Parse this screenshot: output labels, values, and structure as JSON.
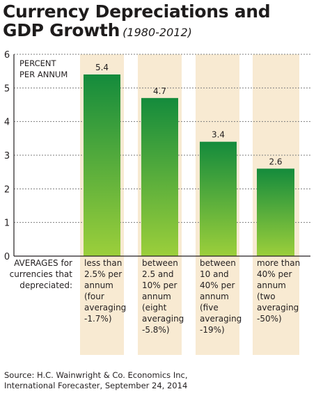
{
  "title": {
    "line1": "Currency Depreciations and",
    "line2": "GDP Growth",
    "period": "(1980-2012)"
  },
  "source": {
    "line1": "Source: H.C. Wainwright & Co. Economics Inc,",
    "line2": "International Forecaster, September 24, 2014"
  },
  "colors": {
    "column_band": "#f8ead2",
    "bar_top": "#148b3c",
    "bar_bottom": "#9ccf3b",
    "gridline": "#7d7d7d"
  },
  "chart_data": {
    "type": "bar",
    "unit_label": [
      "PERCENT",
      "PER ANNUM"
    ],
    "ylim": [
      0,
      6
    ],
    "yticks": [
      0,
      1,
      2,
      3,
      4,
      5,
      6
    ],
    "grid": true,
    "category_header": [
      "AVERAGES for",
      "currencies that",
      "depreciated:"
    ],
    "categories": [
      {
        "lines": [
          "less than",
          "2.5% per",
          "annum",
          "(four",
          "averaging",
          "-1.7%)"
        ]
      },
      {
        "lines": [
          "between",
          "2.5 and",
          "10% per",
          "annum",
          "(eight",
          "averaging",
          "-5.8%)"
        ]
      },
      {
        "lines": [
          "between",
          "10 and",
          "40% per",
          "annum",
          "(five",
          "averaging",
          "-19%)"
        ]
      },
      {
        "lines": [
          "more than",
          "40% per",
          "annum",
          "(two",
          "averaging",
          "-50%)"
        ]
      }
    ],
    "values": [
      5.4,
      4.7,
      3.4,
      2.6
    ],
    "value_labels": [
      "5.4",
      "4.7",
      "3.4",
      "2.6"
    ]
  }
}
